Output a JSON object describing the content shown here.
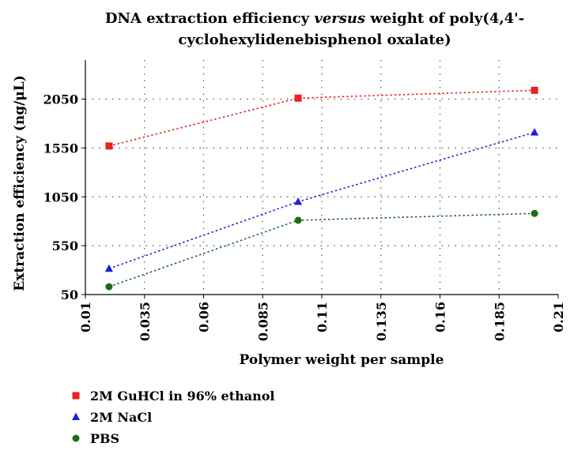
{
  "chart_data": {
    "type": "line",
    "title_line1_a": "DNA extraction efficiency ",
    "title_line1_em": "versus",
    "title_line1_b": " weight of poly(4,4'-",
    "title_line2": "cyclohexylidenebisphenol oxalate)",
    "xlabel": "Polymer weight per sample",
    "ylabel": "Extraction efficiency (ng/μL)",
    "xlim": [
      0.01,
      0.21
    ],
    "ylim": [
      50,
      2450
    ],
    "x_ticks": [
      "0.01",
      "0.035",
      "0.06",
      "0.085",
      "0.11",
      "0.135",
      "0.16",
      "0.185",
      "0.21"
    ],
    "y_ticks": [
      "50",
      "550",
      "1050",
      "1550",
      "2050"
    ],
    "grid": true,
    "legend_position": "bottom-left",
    "series": [
      {
        "name": "2M GuHCl in 96% ethanol",
        "marker": "square",
        "color": "#e8221f",
        "x": [
          0.02,
          0.1,
          0.2
        ],
        "y": [
          1570,
          2060,
          2140
        ]
      },
      {
        "name": "2M NaCl",
        "marker": "triangle",
        "color": "#1f1fdc",
        "x": [
          0.02,
          0.1,
          0.2
        ],
        "y": [
          315,
          1000,
          1710
        ]
      },
      {
        "name": "PBS",
        "marker": "circle",
        "color": "#1b6b1b",
        "x": [
          0.02,
          0.1,
          0.2
        ],
        "y": [
          130,
          810,
          880
        ]
      }
    ]
  }
}
